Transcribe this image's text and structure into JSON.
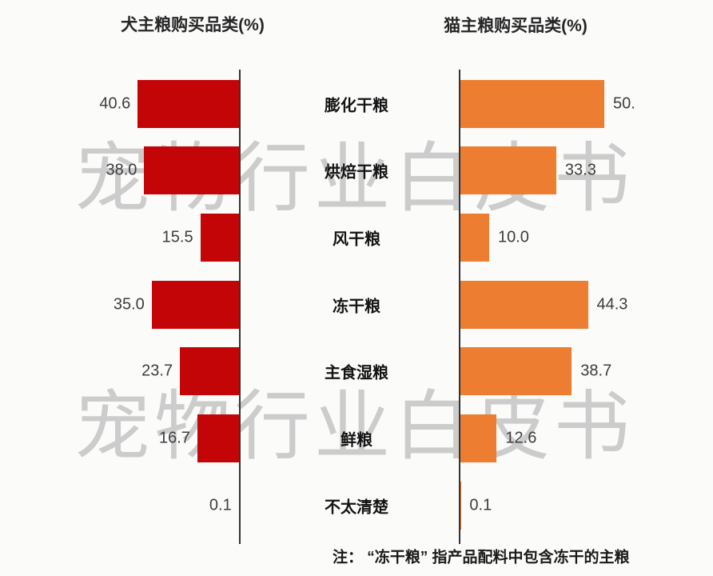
{
  "chart_data": {
    "type": "bar",
    "orientation": "horizontal-diverging",
    "categories": [
      "膨化干粮",
      "烘焙干粮",
      "风干粮",
      "冻干粮",
      "主食湿粮",
      "鲜粮",
      "不太清楚"
    ],
    "series": [
      {
        "name": "犬主粮购买品类(%)",
        "side": "left",
        "color": "#c40508",
        "values": [
          40.6,
          38.0,
          15.5,
          35.0,
          23.7,
          16.7,
          0.1
        ],
        "labels": [
          "40.6",
          "38.0",
          "15.5",
          "35.0",
          "23.7",
          "16.7",
          "0.1"
        ]
      },
      {
        "name": "猫主粮购买品类(%)",
        "side": "right",
        "color": "#ec7d31",
        "values": [
          50.0,
          33.3,
          10.0,
          44.3,
          38.7,
          12.6,
          0.1
        ],
        "labels": [
          "50.",
          "33.3",
          "10.0",
          "44.3",
          "38.7",
          "12.6",
          "0.1"
        ]
      }
    ],
    "value_axis_hidden": true,
    "grid": false,
    "legend": false,
    "note": "注： “冻干粮” 指产品配料中包含冻干的主粮",
    "watermark": "宠物行业白皮书"
  },
  "colors": {
    "background": "#fbfbfa",
    "axis": "#333333",
    "dog_bar": "#c40508",
    "cat_bar": "#ec7d31",
    "watermark": "#c6c6c6"
  }
}
